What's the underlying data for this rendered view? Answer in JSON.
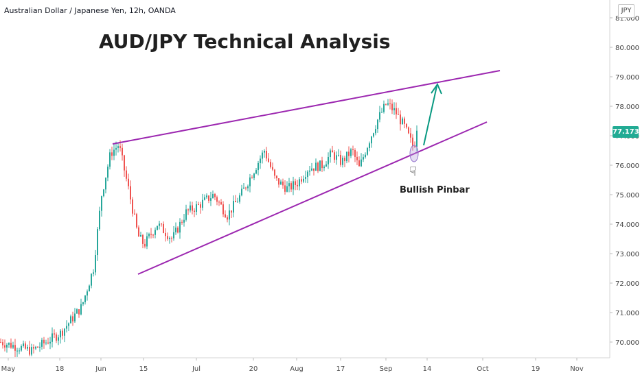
{
  "header": {
    "symbol": "Australian Dollar / Japanese Yen, 12h, OANDA",
    "currency": "JPY"
  },
  "chart_data": {
    "type": "candlestick",
    "title": "AUD/JPY Technical Analysis",
    "xlabel": "",
    "ylabel": "",
    "ylim": [
      69.6,
      81.4
    ],
    "y_ticks": [
      70,
      71,
      72,
      73,
      74,
      75,
      76,
      77,
      78,
      79,
      80,
      81
    ],
    "x_ticks": [
      "May",
      "18",
      "Jun",
      "15",
      "Jul",
      "20",
      "Aug",
      "17",
      "Sep",
      "14",
      "Oct",
      "19",
      "Nov"
    ],
    "last_price": "77.173",
    "annotation": "Bullish Pinbar",
    "colors": {
      "up": "#26a69a",
      "down": "#ef5350",
      "trendline": "#9c27b0",
      "arrow": "#089981",
      "price_badge": "#22ab94"
    },
    "price_path": [
      [
        "May",
        70.0
      ],
      [
        "12 May",
        69.7
      ],
      [
        "18",
        70.3
      ],
      [
        "24 May",
        71.2
      ],
      [
        "29 May",
        72.5
      ],
      [
        "Jun",
        75.0
      ],
      [
        "4 Jun",
        76.4
      ],
      [
        "7 Jun",
        76.7
      ],
      [
        "10 Jun",
        75.2
      ],
      [
        "13 Jun",
        73.6
      ],
      [
        "15",
        73.3
      ],
      [
        "19 Jun",
        74.0
      ],
      [
        "24 Jun",
        73.5
      ],
      [
        "28 Jun",
        74.4
      ],
      [
        "Jul",
        74.6
      ],
      [
        "6 Jul",
        75.0
      ],
      [
        "10 Jul",
        74.3
      ],
      [
        "15 Jul",
        75.0
      ],
      [
        "20",
        76.5
      ],
      [
        "22 Jul",
        75.5
      ],
      [
        "27 Jul",
        75.2
      ],
      [
        "Aug",
        75.4
      ],
      [
        "5 Aug",
        75.9
      ],
      [
        "10 Aug",
        76.0
      ],
      [
        "14 Aug",
        76.4
      ],
      [
        "17",
        76.1
      ],
      [
        "21 Aug",
        76.5
      ],
      [
        "25 Aug",
        75.9
      ],
      [
        "28 Aug",
        76.8
      ],
      [
        "31 Aug",
        77.6
      ],
      [
        "Sep",
        78.1
      ],
      [
        "3 Sep",
        77.8
      ],
      [
        "6 Sep",
        77.3
      ],
      [
        "9 Sep",
        76.6
      ],
      [
        "11 Sep",
        77.17
      ]
    ]
  }
}
